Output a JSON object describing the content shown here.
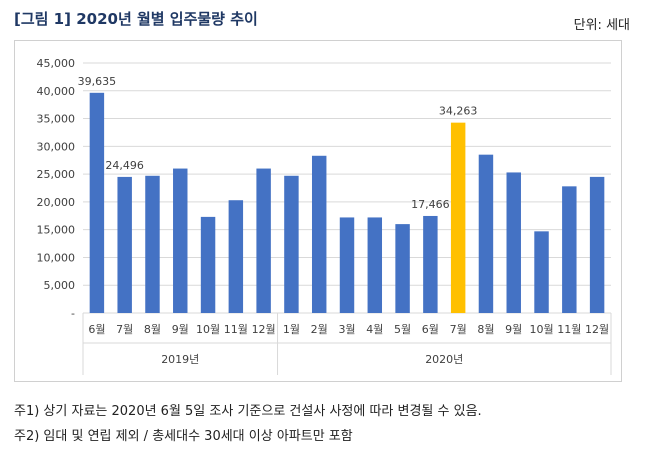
{
  "header": {
    "title": "[그림 1] 2020년 월별 입주물량 추이",
    "unit": "단위: 세대"
  },
  "colors": {
    "bar": "#4472c4",
    "highlight": "#ffc000",
    "grid": "#d9d9d9",
    "text": "#404040"
  },
  "chart_data": {
    "type": "bar",
    "title": "",
    "xlabel": "",
    "ylabel": "",
    "ylim": [
      0,
      45000
    ],
    "yticks": [
      "-",
      "5,000",
      "10,000",
      "15,000",
      "20,000",
      "25,000",
      "30,000",
      "35,000",
      "40,000",
      "45,000"
    ],
    "grid": true,
    "legend": "none",
    "categories": [
      "6월",
      "7월",
      "8월",
      "9월",
      "10월",
      "11월",
      "12월",
      "1월",
      "2월",
      "3월",
      "4월",
      "5월",
      "6월",
      "7월",
      "8월",
      "9월",
      "10월",
      "11월",
      "12월"
    ],
    "values": [
      39635,
      24496,
      24700,
      26000,
      17300,
      20300,
      26000,
      24700,
      28300,
      17200,
      17200,
      16000,
      17466,
      34263,
      28500,
      25300,
      14700,
      22800,
      24500
    ],
    "highlight_index": 13,
    "data_labels": [
      {
        "index": 0,
        "text": "39,635"
      },
      {
        "index": 1,
        "text": "24,496"
      },
      {
        "index": 12,
        "text": "17,466"
      },
      {
        "index": 13,
        "text": "34,263"
      }
    ],
    "groups": [
      {
        "label": "2019년",
        "start": 0,
        "end": 6
      },
      {
        "label": "2020년",
        "start": 7,
        "end": 18
      }
    ]
  },
  "notes": [
    "주1) 상기 자료는 2020년 6월 5일 조사 기준으로 건설사 사정에 따라 변경될 수 있음.",
    "주2) 임대 및 연립 제외 / 총세대수 30세대 이상 아파트만 포함"
  ]
}
